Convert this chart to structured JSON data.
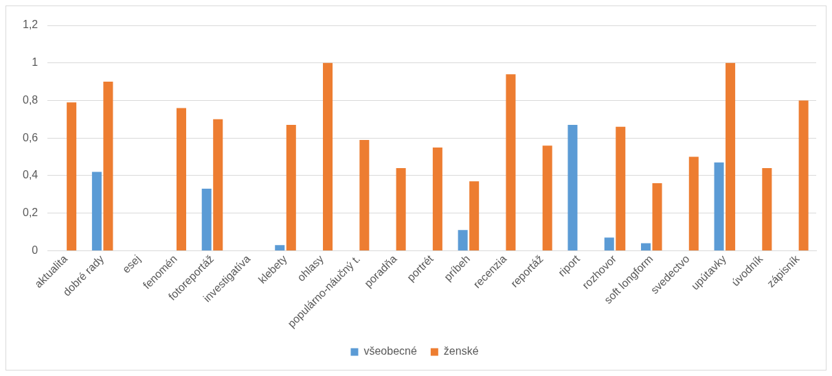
{
  "chart_data": {
    "type": "bar",
    "categories": [
      "aktualita",
      "dobré rady",
      "esej",
      "fenomén",
      "fotoreportáž",
      "investigatíva",
      "klebety",
      "ohlasy",
      "populárno-náučný t.",
      "poradňa",
      "portrét",
      "príbeh",
      "recenzia",
      "reportáž",
      "riport",
      "rozhovor",
      "soft longform",
      "svedectvo",
      "upútavky",
      "úvodník",
      "zápisník"
    ],
    "series": [
      {
        "name": "všeobecné",
        "color": "#5b9bd5",
        "values": [
          0,
          0.42,
          0,
          0,
          0.33,
          0,
          0.03,
          0,
          0,
          0,
          0,
          0.11,
          0,
          0,
          0.67,
          0.07,
          0.04,
          0,
          0.47,
          0,
          0
        ]
      },
      {
        "name": "ženské",
        "color": "#ed7d31",
        "values": [
          0.79,
          0.9,
          0,
          0.76,
          0.7,
          0,
          0.67,
          1,
          0.59,
          0.44,
          0.55,
          0.37,
          0.94,
          0.56,
          0,
          0.66,
          0.36,
          0.5,
          1,
          0.44,
          0.8
        ]
      }
    ],
    "ylim": [
      0,
      1.2
    ],
    "yticks": [
      {
        "value": 0,
        "label": "0"
      },
      {
        "value": 0.2,
        "label": "0,2"
      },
      {
        "value": 0.4,
        "label": "0,4"
      },
      {
        "value": 0.6,
        "label": "0,6"
      },
      {
        "value": 0.8,
        "label": "0,8"
      },
      {
        "value": 1,
        "label": "1"
      },
      {
        "value": 1.2,
        "label": "1,2"
      }
    ],
    "grid": "y",
    "legend": "bottom"
  }
}
